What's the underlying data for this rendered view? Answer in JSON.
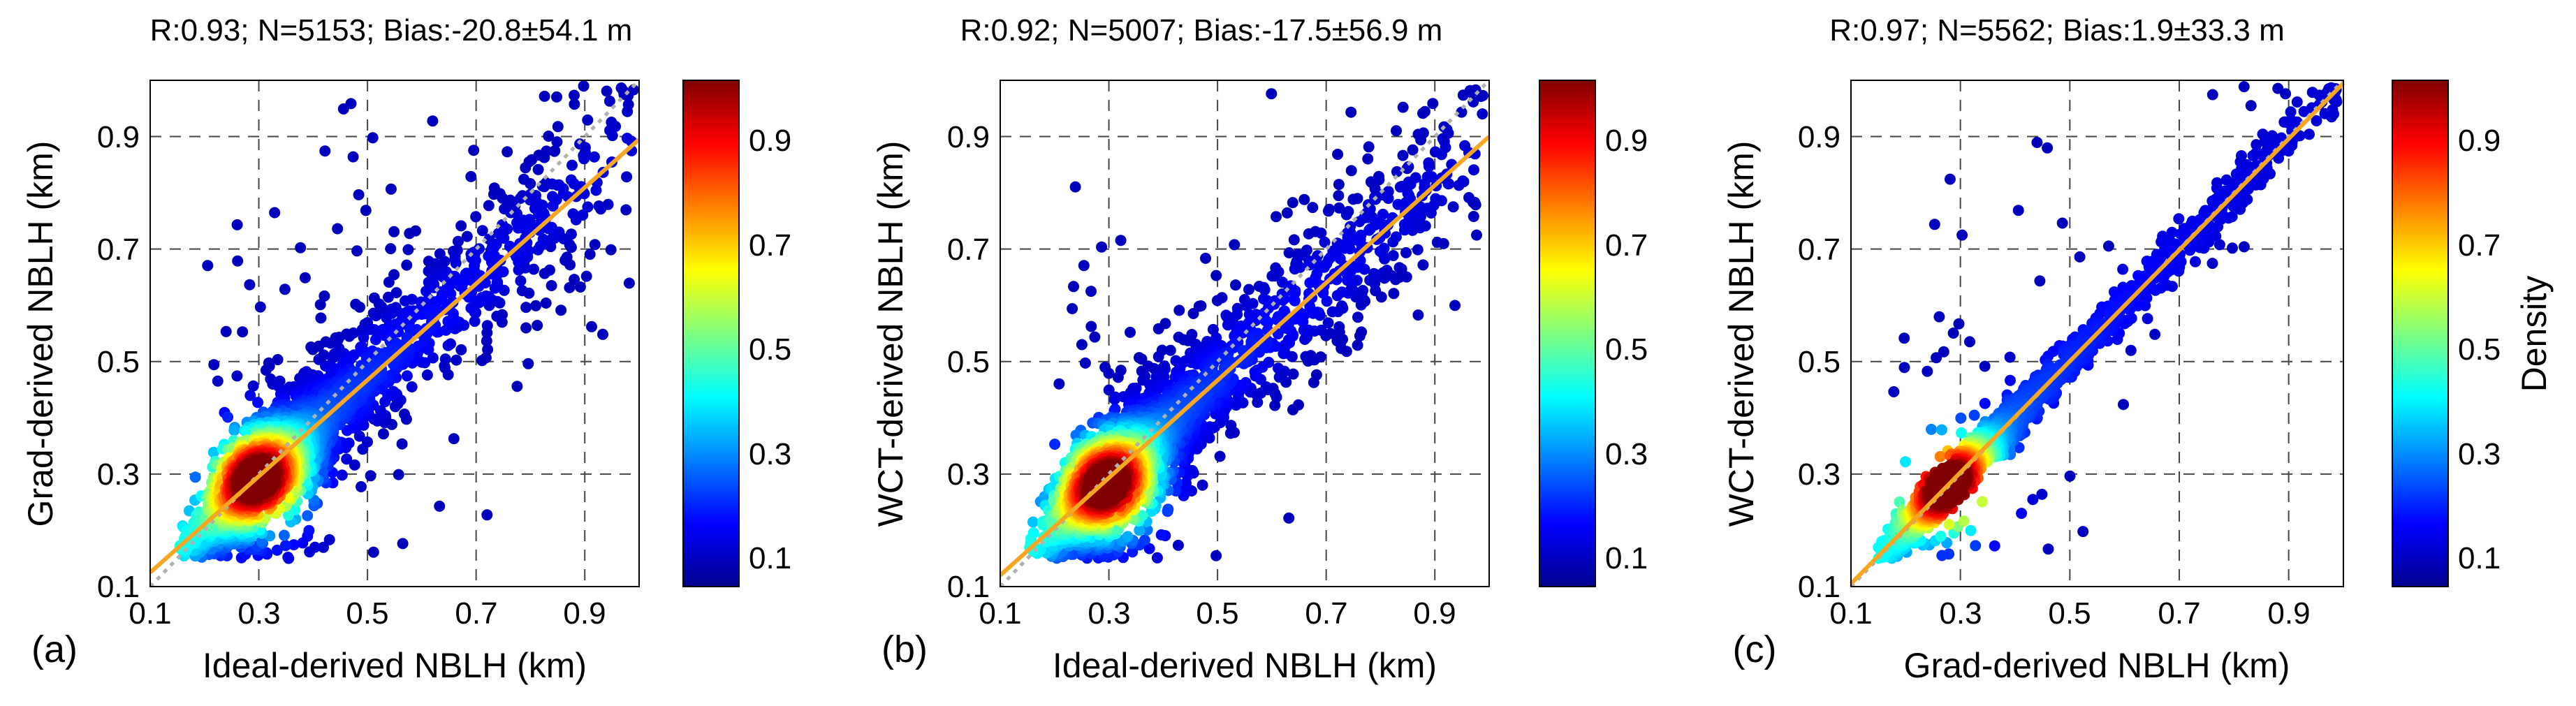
{
  "chart_data": [
    {
      "type": "scatter",
      "panel_label": "(a)",
      "title": "R:0.93; N=5153; Bias:-20.8±54.1 m",
      "xlabel": "Ideal-derived NBLH (km)",
      "ylabel": "Grad-derived NBLH (km)",
      "xlim": [
        0.1,
        1.0
      ],
      "ylim": [
        0.1,
        1.0
      ],
      "xticks": [
        "0.1",
        "0.3",
        "0.5",
        "0.7",
        "0.9"
      ],
      "yticks": [
        "0.1",
        "0.3",
        "0.5",
        "0.7",
        "0.9"
      ],
      "grid": true,
      "one_to_one_line": true,
      "fit_line": {
        "x": [
          0.1,
          1.0
        ],
        "y": [
          0.125,
          0.895
        ]
      },
      "cluster_center": [
        0.3,
        0.29
      ],
      "colorbar": {
        "ticks": [
          "0.1",
          "0.3",
          "0.5",
          "0.7",
          "0.9"
        ],
        "range": [
          0.03,
          1.0
        ],
        "label": ""
      }
    },
    {
      "type": "scatter",
      "panel_label": "(b)",
      "title": "R:0.92; N=5007; Bias:-17.5±56.9 m",
      "xlabel": "Ideal-derived NBLH (km)",
      "ylabel": "WCT-derived NBLH (km)",
      "xlim": [
        0.1,
        1.0
      ],
      "ylim": [
        0.1,
        1.0
      ],
      "xticks": [
        "0.1",
        "0.3",
        "0.5",
        "0.7",
        "0.9"
      ],
      "yticks": [
        "0.1",
        "0.3",
        "0.5",
        "0.7",
        "0.9"
      ],
      "grid": true,
      "one_to_one_line": true,
      "fit_line": {
        "x": [
          0.1,
          1.0
        ],
        "y": [
          0.12,
          0.9
        ]
      },
      "cluster_center": [
        0.3,
        0.28
      ],
      "colorbar": {
        "ticks": [
          "0.1",
          "0.3",
          "0.5",
          "0.7",
          "0.9"
        ],
        "range": [
          0.03,
          1.0
        ],
        "label": ""
      }
    },
    {
      "type": "scatter",
      "panel_label": "(c)",
      "title": "R:0.97; N=5562; Bias:1.9±33.3 m",
      "xlabel": "Grad-derived NBLH (km)",
      "ylabel": "WCT-derived NBLH (km)",
      "xlim": [
        0.1,
        1.0
      ],
      "ylim": [
        0.1,
        1.0
      ],
      "xticks": [
        "0.1",
        "0.3",
        "0.5",
        "0.7",
        "0.9"
      ],
      "yticks": [
        "0.1",
        "0.3",
        "0.5",
        "0.7",
        "0.9"
      ],
      "grid": true,
      "one_to_one_line": true,
      "fit_line": {
        "x": [
          0.1,
          1.0
        ],
        "y": [
          0.105,
          0.995
        ]
      },
      "cluster_center": [
        0.28,
        0.28
      ],
      "colorbar": {
        "ticks": [
          "0.1",
          "0.3",
          "0.5",
          "0.7",
          "0.9"
        ],
        "range": [
          0.03,
          1.0
        ],
        "label": "Density"
      }
    }
  ],
  "colors": {
    "fit_line": "#f5a623",
    "one_to_one_line": "#b0b0b0",
    "grid": "#444444",
    "colormap": [
      "#00008f",
      "#0000ff",
      "#0080ff",
      "#00ffff",
      "#80ff80",
      "#ffff00",
      "#ff8000",
      "#ff0000",
      "#800000"
    ]
  }
}
